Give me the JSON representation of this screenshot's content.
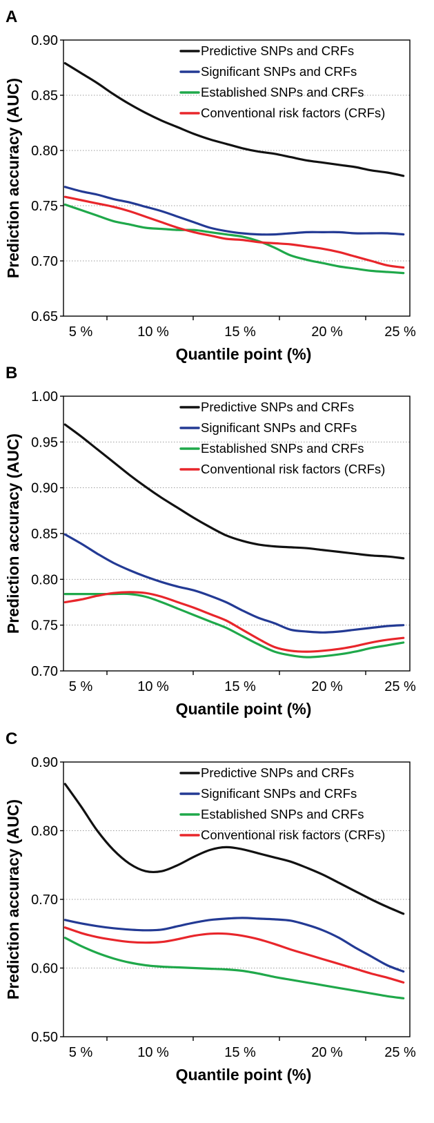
{
  "chart_data": [
    {
      "panel": "A",
      "type": "line",
      "xlabel": "Quantile point (%)",
      "ylabel": "Prediction accuracy (AUC)",
      "x_tick_labels": [
        "5 %",
        "10 %",
        "15 %",
        "20 %",
        "25 %"
      ],
      "y_tick_labels": [
        "0.65",
        "0.70",
        "0.75",
        "0.80",
        "0.85",
        "0.90"
      ],
      "ylim": [
        0.65,
        0.9
      ],
      "xlim": [
        3.9,
        25.4
      ],
      "grid": true,
      "legend_position": "top-right",
      "x": [
        4,
        5,
        6,
        7,
        8,
        9,
        10,
        11,
        12,
        13,
        14,
        15,
        16,
        17,
        18,
        19,
        20,
        21,
        22,
        23,
        24,
        25
      ],
      "series": [
        {
          "name": "Predictive SNPs and CRFs",
          "color": "#111111",
          "values": [
            0.879,
            0.87,
            0.861,
            0.851,
            0.842,
            0.834,
            0.827,
            0.821,
            0.815,
            0.81,
            0.806,
            0.802,
            0.799,
            0.797,
            0.794,
            0.791,
            0.789,
            0.787,
            0.785,
            0.782,
            0.78,
            0.777
          ]
        },
        {
          "name": "Significant SNPs and CRFs",
          "color": "#233a94",
          "values": [
            0.767,
            0.763,
            0.76,
            0.756,
            0.753,
            0.749,
            0.745,
            0.74,
            0.735,
            0.73,
            0.727,
            0.725,
            0.724,
            0.724,
            0.725,
            0.726,
            0.726,
            0.726,
            0.725,
            0.725,
            0.725,
            0.724
          ]
        },
        {
          "name": "Established SNPs and CRFs",
          "color": "#1fa84a",
          "values": [
            0.751,
            0.746,
            0.741,
            0.736,
            0.733,
            0.73,
            0.729,
            0.728,
            0.728,
            0.726,
            0.724,
            0.722,
            0.718,
            0.712,
            0.705,
            0.701,
            0.698,
            0.695,
            0.693,
            0.691,
            0.69,
            0.689
          ]
        },
        {
          "name": "Conventional risk factors (CRFs)",
          "color": "#e8262b",
          "values": [
            0.758,
            0.755,
            0.752,
            0.749,
            0.745,
            0.74,
            0.735,
            0.73,
            0.726,
            0.723,
            0.72,
            0.719,
            0.717,
            0.716,
            0.715,
            0.713,
            0.711,
            0.708,
            0.704,
            0.7,
            0.696,
            0.694
          ]
        }
      ]
    },
    {
      "panel": "B",
      "type": "line",
      "xlabel": "Quantile point (%)",
      "ylabel": "Prediction accuracy (AUC)",
      "x_tick_labels": [
        "5 %",
        "10 %",
        "15 %",
        "20 %",
        "25 %"
      ],
      "y_tick_labels": [
        "0.70",
        "0.75",
        "0.80",
        "0.85",
        "0.90",
        "0.95",
        "1.00"
      ],
      "ylim": [
        0.7,
        1.0
      ],
      "xlim": [
        3.9,
        25.4
      ],
      "grid": true,
      "legend_position": "top-right",
      "x": [
        4,
        5,
        6,
        7,
        8,
        9,
        10,
        11,
        12,
        13,
        14,
        15,
        16,
        17,
        18,
        19,
        20,
        21,
        22,
        23,
        24,
        25
      ],
      "series": [
        {
          "name": "Predictive SNPs and CRFs",
          "color": "#111111",
          "values": [
            0.969,
            0.956,
            0.942,
            0.928,
            0.914,
            0.901,
            0.889,
            0.878,
            0.867,
            0.857,
            0.848,
            0.842,
            0.838,
            0.836,
            0.835,
            0.834,
            0.832,
            0.83,
            0.828,
            0.826,
            0.825,
            0.823
          ]
        },
        {
          "name": "Significant SNPs and CRFs",
          "color": "#233a94",
          "values": [
            0.849,
            0.839,
            0.828,
            0.818,
            0.81,
            0.803,
            0.797,
            0.792,
            0.788,
            0.782,
            0.775,
            0.766,
            0.758,
            0.752,
            0.745,
            0.743,
            0.742,
            0.743,
            0.745,
            0.747,
            0.749,
            0.75
          ]
        },
        {
          "name": "Established SNPs and CRFs",
          "color": "#1fa84a",
          "values": [
            0.784,
            0.784,
            0.784,
            0.784,
            0.784,
            0.781,
            0.775,
            0.768,
            0.761,
            0.754,
            0.747,
            0.738,
            0.729,
            0.721,
            0.717,
            0.715,
            0.716,
            0.718,
            0.721,
            0.725,
            0.728,
            0.731
          ]
        },
        {
          "name": "Conventional risk factors (CRFs)",
          "color": "#e8262b",
          "values": [
            0.775,
            0.778,
            0.782,
            0.785,
            0.786,
            0.785,
            0.781,
            0.775,
            0.769,
            0.762,
            0.755,
            0.745,
            0.735,
            0.726,
            0.722,
            0.721,
            0.722,
            0.724,
            0.727,
            0.731,
            0.734,
            0.736
          ]
        }
      ]
    },
    {
      "panel": "C",
      "type": "line",
      "xlabel": "Quantile point (%)",
      "ylabel": "Prediction accuracy (AUC)",
      "x_tick_labels": [
        "5 %",
        "10 %",
        "15 %",
        "20 %",
        "25 %"
      ],
      "y_tick_labels": [
        "0.50",
        "0.60",
        "0.70",
        "0.80",
        "0.90"
      ],
      "ylim": [
        0.5,
        0.9
      ],
      "xlim": [
        3.9,
        25.4
      ],
      "grid": true,
      "legend_position": "top-right",
      "x": [
        4,
        5,
        6,
        7,
        8,
        9,
        10,
        11,
        12,
        13,
        14,
        15,
        16,
        17,
        18,
        19,
        20,
        21,
        22,
        23,
        24,
        25
      ],
      "series": [
        {
          "name": "Predictive SNPs and CRFs",
          "color": "#111111",
          "values": [
            0.868,
            0.835,
            0.8,
            0.772,
            0.752,
            0.741,
            0.741,
            0.75,
            0.762,
            0.772,
            0.776,
            0.773,
            0.767,
            0.761,
            0.755,
            0.746,
            0.736,
            0.724,
            0.712,
            0.7,
            0.689,
            0.679
          ]
        },
        {
          "name": "Significant SNPs and CRFs",
          "color": "#233a94",
          "values": [
            0.67,
            0.665,
            0.661,
            0.658,
            0.656,
            0.655,
            0.656,
            0.661,
            0.666,
            0.67,
            0.672,
            0.673,
            0.672,
            0.671,
            0.669,
            0.663,
            0.655,
            0.644,
            0.63,
            0.617,
            0.604,
            0.595
          ]
        },
        {
          "name": "Established SNPs and CRFs",
          "color": "#1fa84a",
          "values": [
            0.644,
            0.632,
            0.622,
            0.614,
            0.608,
            0.604,
            0.602,
            0.601,
            0.6,
            0.599,
            0.598,
            0.596,
            0.592,
            0.587,
            0.583,
            0.579,
            0.575,
            0.571,
            0.567,
            0.563,
            0.559,
            0.556
          ]
        },
        {
          "name": "Conventional risk factors (CRFs)",
          "color": "#e8262b",
          "values": [
            0.659,
            0.651,
            0.645,
            0.641,
            0.638,
            0.637,
            0.638,
            0.642,
            0.647,
            0.65,
            0.65,
            0.647,
            0.642,
            0.635,
            0.627,
            0.62,
            0.613,
            0.606,
            0.599,
            0.592,
            0.586,
            0.579
          ]
        }
      ]
    }
  ]
}
